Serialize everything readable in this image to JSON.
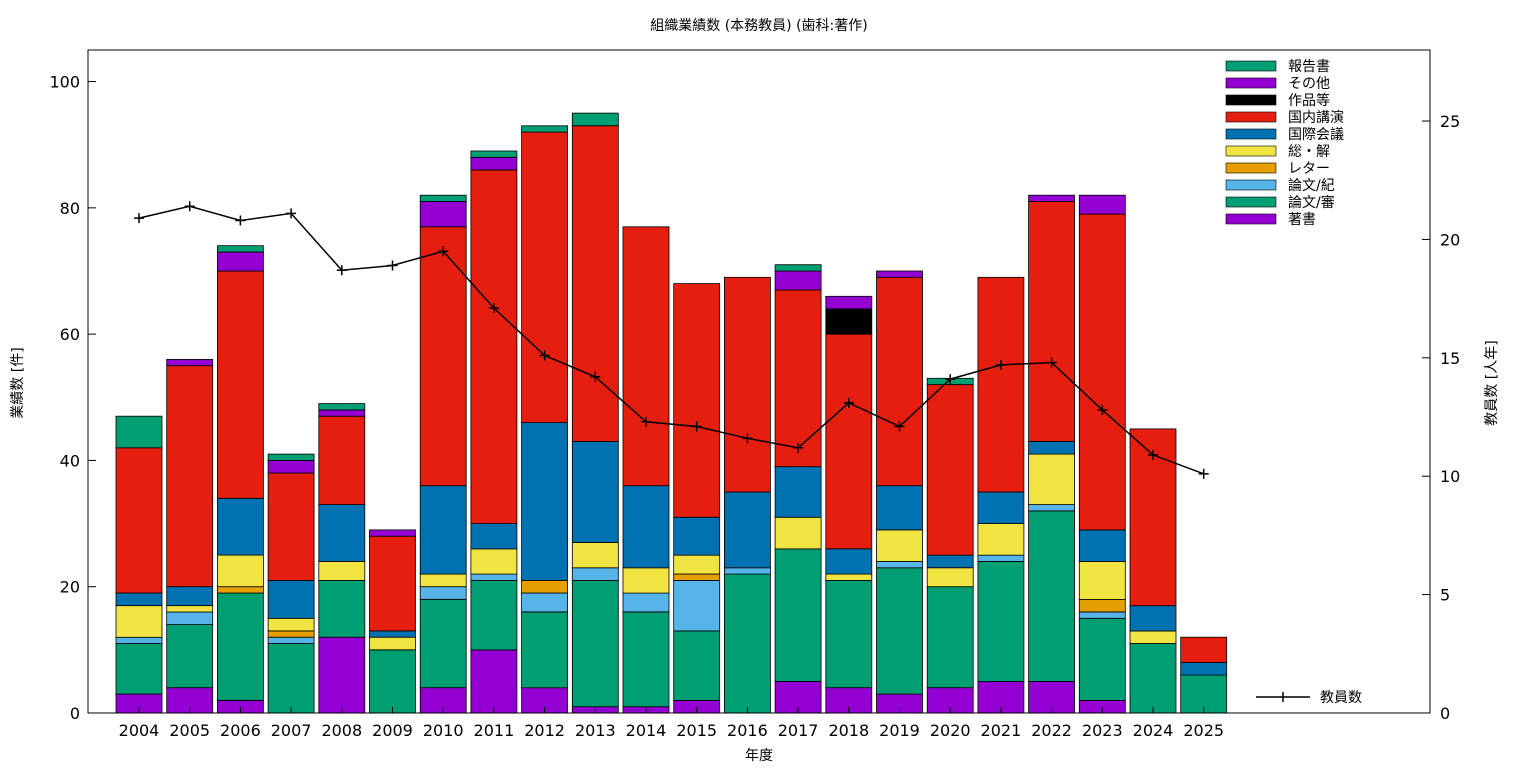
{
  "chart_data": {
    "type": "bar",
    "stacked": true,
    "title": "組織業績数 (本務教員) (歯科:著作)",
    "xlabel": "年度",
    "ylabel": "業績数 [件]",
    "y2label": "教員数 [人年]",
    "ylim": [
      0,
      105
    ],
    "y2lim": [
      0,
      28
    ],
    "yticks": [
      0,
      20,
      40,
      60,
      80,
      100
    ],
    "y2ticks": [
      0,
      5,
      10,
      15,
      20,
      25
    ],
    "grid": false,
    "legend_position": "top-right",
    "categories": [
      "2004",
      "2005",
      "2006",
      "2007",
      "2008",
      "2009",
      "2010",
      "2011",
      "2012",
      "2013",
      "2014",
      "2015",
      "2016",
      "2017",
      "2018",
      "2019",
      "2020",
      "2021",
      "2022",
      "2023",
      "2024",
      "2025"
    ],
    "series": [
      {
        "name": "著書",
        "color": "#9400d3",
        "values": [
          3,
          4,
          2,
          0,
          12,
          0,
          4,
          10,
          4,
          1,
          1,
          2,
          0,
          5,
          4,
          3,
          4,
          5,
          5,
          2,
          0,
          0
        ]
      },
      {
        "name": "論文/審",
        "color": "#009e73",
        "values": [
          8,
          10,
          17,
          11,
          9,
          10,
          14,
          11,
          12,
          20,
          15,
          11,
          22,
          21,
          17,
          20,
          16,
          19,
          27,
          13,
          11,
          6
        ]
      },
      {
        "name": "論文/紀",
        "color": "#56b4e9",
        "values": [
          1,
          2,
          0,
          1,
          0,
          0,
          2,
          1,
          3,
          2,
          3,
          8,
          1,
          0,
          0,
          1,
          0,
          1,
          1,
          1,
          0,
          0
        ]
      },
      {
        "name": "レター",
        "color": "#e69f00",
        "values": [
          0,
          0,
          1,
          1,
          0,
          0,
          0,
          0,
          2,
          0,
          0,
          1,
          0,
          0,
          0,
          0,
          0,
          0,
          0,
          2,
          0,
          0
        ]
      },
      {
        "name": "総・解",
        "color": "#f0e442",
        "values": [
          5,
          1,
          5,
          2,
          3,
          2,
          2,
          4,
          0,
          4,
          4,
          3,
          0,
          5,
          1,
          5,
          3,
          5,
          8,
          6,
          2,
          0
        ]
      },
      {
        "name": "国際会議",
        "color": "#0072b2",
        "values": [
          2,
          3,
          9,
          6,
          9,
          1,
          14,
          4,
          25,
          16,
          13,
          6,
          12,
          8,
          4,
          7,
          2,
          5,
          2,
          5,
          4,
          2
        ]
      },
      {
        "name": "国内講演",
        "color": "#e51e10",
        "values": [
          23,
          35,
          36,
          17,
          14,
          15,
          41,
          56,
          46,
          50,
          41,
          37,
          34,
          28,
          34,
          33,
          27,
          34,
          38,
          50,
          28,
          4
        ]
      },
      {
        "name": "作品等",
        "color": "#000000",
        "values": [
          0,
          0,
          0,
          0,
          0,
          0,
          0,
          0,
          0,
          0,
          0,
          0,
          0,
          0,
          4,
          0,
          0,
          0,
          0,
          0,
          0,
          0
        ]
      },
      {
        "name": "その他",
        "color": "#9400d3",
        "values": [
          0,
          1,
          3,
          2,
          1,
          1,
          4,
          2,
          0,
          0,
          0,
          0,
          0,
          3,
          2,
          1,
          0,
          0,
          1,
          3,
          0,
          0
        ]
      },
      {
        "name": "報告書",
        "color": "#009e73",
        "values": [
          5,
          0,
          1,
          1,
          1,
          0,
          1,
          1,
          1,
          2,
          0,
          0,
          0,
          1,
          0,
          0,
          1,
          0,
          0,
          0,
          0,
          0
        ]
      }
    ],
    "line_series": {
      "name": "教員数",
      "axis": "y2",
      "color": "#000000",
      "marker": "+",
      "values": [
        20.9,
        21.4,
        20.8,
        21.1,
        18.7,
        18.9,
        19.5,
        17.1,
        15.1,
        14.2,
        12.3,
        12.1,
        11.6,
        11.2,
        13.1,
        12.1,
        14.1,
        14.7,
        14.8,
        12.8,
        10.9,
        10.1
      ]
    }
  }
}
